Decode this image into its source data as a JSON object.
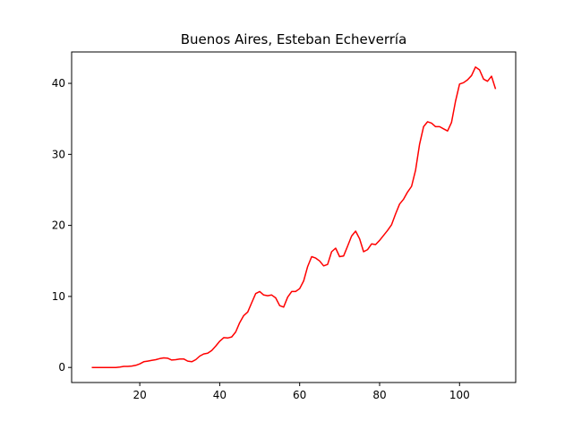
{
  "chart_data": {
    "type": "line",
    "title": "Buenos Aires, Esteban Echeverría",
    "xlabel": "",
    "ylabel": "",
    "xlim": [
      2.95,
      114.05
    ],
    "ylim": [
      -2.12,
      44.42
    ],
    "x_ticks": [
      20,
      40,
      60,
      80,
      100
    ],
    "y_ticks": [
      0,
      10,
      20,
      30,
      40
    ],
    "grid": false,
    "legend": "none",
    "series": [
      {
        "color": "#ff0000",
        "x": [
          8,
          9,
          10,
          11,
          12,
          13,
          14,
          15,
          16,
          17,
          18,
          19,
          20,
          21,
          22,
          23,
          24,
          25,
          26,
          27,
          28,
          29,
          30,
          31,
          32,
          33,
          34,
          35,
          36,
          37,
          38,
          39,
          40,
          41,
          42,
          43,
          44,
          45,
          46,
          47,
          48,
          49,
          50,
          51,
          52,
          53,
          54,
          55,
          56,
          57,
          58,
          59,
          60,
          61,
          62,
          63,
          64,
          65,
          66,
          67,
          68,
          69,
          70,
          71,
          72,
          73,
          74,
          75,
          76,
          77,
          78,
          79,
          80,
          81,
          82,
          83,
          84,
          85,
          86,
          87,
          88,
          89,
          90,
          91,
          92,
          93,
          94,
          95,
          96,
          97,
          98,
          99,
          100,
          101,
          102,
          103,
          104,
          105,
          106,
          107,
          108,
          109
        ],
        "y": [
          0.0,
          0.0,
          0.0,
          0.0,
          0.0,
          0.0,
          0.0,
          0.05,
          0.15,
          0.15,
          0.2,
          0.3,
          0.5,
          0.8,
          0.9,
          1.0,
          1.1,
          1.25,
          1.35,
          1.3,
          1.05,
          1.1,
          1.2,
          1.2,
          0.9,
          0.8,
          1.1,
          1.6,
          1.9,
          2.0,
          2.4,
          3.0,
          3.7,
          4.2,
          4.15,
          4.3,
          5.0,
          6.3,
          7.3,
          7.8,
          9.1,
          10.4,
          10.7,
          10.2,
          10.1,
          10.2,
          9.8,
          8.7,
          8.5,
          9.9,
          10.7,
          10.7,
          11.1,
          12.2,
          14.2,
          15.6,
          15.4,
          15.0,
          14.3,
          14.5,
          16.3,
          16.8,
          15.6,
          15.7,
          17.1,
          18.5,
          19.2,
          18.1,
          16.3,
          16.6,
          17.4,
          17.3,
          17.9,
          18.6,
          19.3,
          20.1,
          21.6,
          23.0,
          23.7,
          24.7,
          25.5,
          27.8,
          31.4,
          33.9,
          34.6,
          34.4,
          33.9,
          33.9,
          33.6,
          33.3,
          34.5,
          37.5,
          39.9,
          40.1,
          40.5,
          41.1,
          42.3,
          41.9,
          40.6,
          40.3,
          41.0,
          39.2
        ]
      }
    ]
  }
}
